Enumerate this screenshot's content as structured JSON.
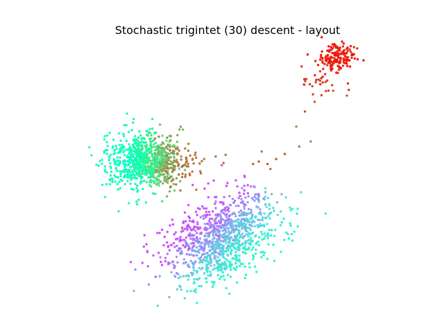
{
  "chart_data": {
    "type": "scatter",
    "title": "Stochastic trigintet (30) descent - layout",
    "xlabel": "",
    "ylabel": "",
    "axes_visible": false,
    "grid": false,
    "legend": "none",
    "xlim": [
      0,
      100
    ],
    "ylim": [
      0,
      100
    ],
    "clusters": [
      {
        "name": "upper-right cluster",
        "center": [
          88,
          94
        ],
        "spread": [
          3.2,
          2.6
        ],
        "count": 150,
        "color_range": [
          0.93,
          1.0
        ]
      },
      {
        "name": "upper-right tail",
        "center": [
          83,
          84
        ],
        "spread": [
          3.5,
          3.5
        ],
        "count": 35,
        "color_range": [
          0.88,
          0.95
        ]
      },
      {
        "name": "bridge points",
        "points": [
          [
            77,
            72
          ],
          [
            74,
            66
          ],
          [
            79,
            60
          ],
          [
            75,
            58
          ],
          [
            62,
            56
          ],
          [
            67,
            53
          ],
          [
            64,
            51
          ],
          [
            70,
            55
          ],
          [
            61,
            52
          ],
          [
            65,
            49
          ],
          [
            38,
            53
          ],
          [
            42,
            53
          ],
          [
            46,
            54
          ],
          [
            59,
            51
          ]
        ],
        "color_range": [
          0.82,
          0.92
        ]
      },
      {
        "name": "left cluster",
        "center": [
          22,
          52
        ],
        "spread": [
          7,
          5.5
        ],
        "count": 900,
        "color_range": [
          0.45,
          0.85
        ]
      },
      {
        "name": "bottom cluster",
        "center": [
          48,
          21
        ],
        "spread": [
          7.5,
          6.5
        ],
        "count": 1100,
        "color_range": [
          0.1,
          0.42
        ]
      }
    ]
  }
}
